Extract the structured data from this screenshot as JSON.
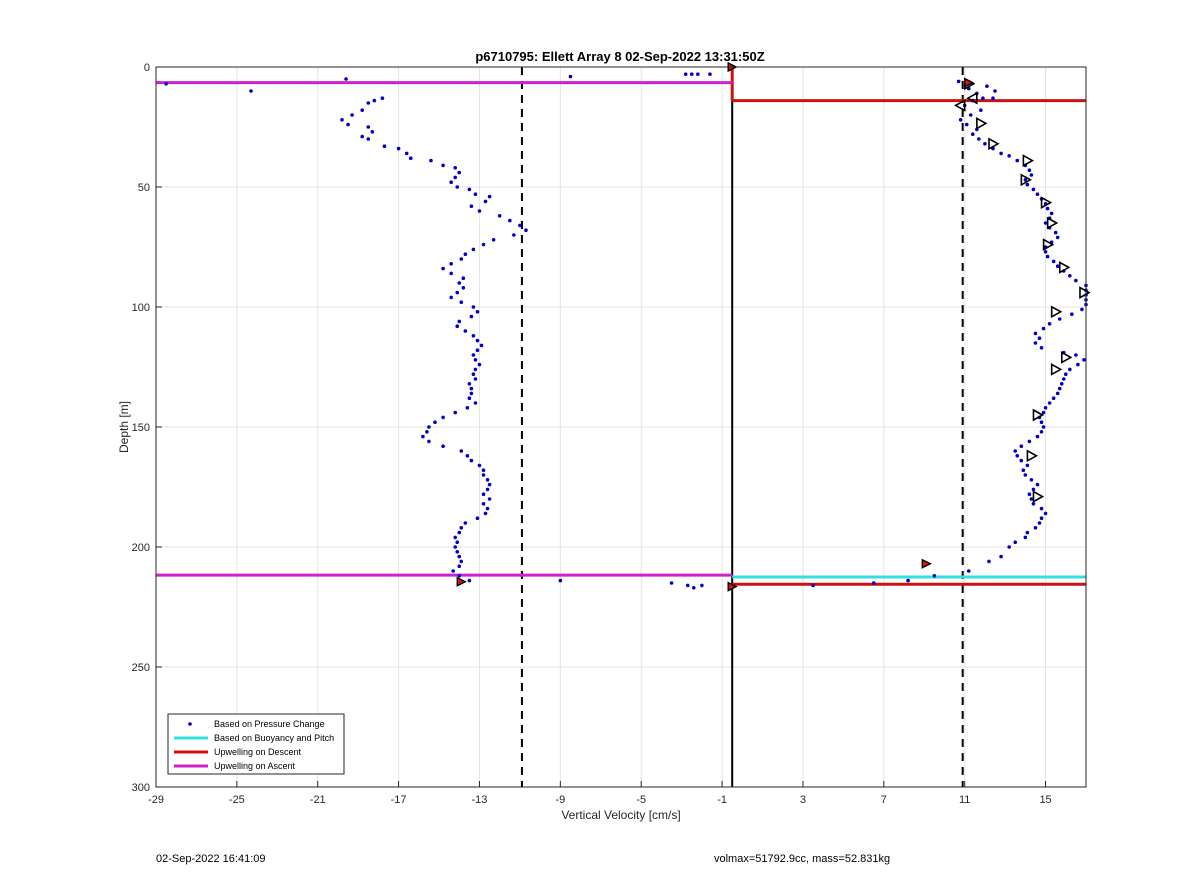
{
  "chart_data": {
    "type": "scatter",
    "title": "p6710795: Ellett Array 8 02-Sep-2022 13:31:50Z",
    "xlabel": "Vertical Velocity [cm/s]",
    "ylabel": "Depth [m]",
    "xlim": [
      -29,
      17
    ],
    "ylim": [
      0,
      300
    ],
    "y_reversed": true,
    "grid": true,
    "xticks": [
      -29,
      -25,
      -21,
      -17,
      -13,
      -9,
      -5,
      -1,
      3,
      7,
      11,
      15
    ],
    "yticks": [
      0,
      50,
      100,
      150,
      200,
      250,
      300
    ],
    "legend": {
      "location": "bottom-left",
      "entries": [
        {
          "name": "Based on Pressure Change",
          "color": "#0000cc",
          "style": "dot"
        },
        {
          "name": "Based on Buoyancy and Pitch",
          "color": "#33e0e0",
          "style": "line"
        },
        {
          "name": "Upwelling on Descent",
          "color": "#cc1111",
          "style": "line"
        },
        {
          "name": "Upwelling on Ascent",
          "color": "#cc22cc",
          "style": "line"
        }
      ]
    },
    "series": [
      {
        "name": "Based on Pressure Change",
        "color": "#0000cc",
        "points": [
          [
            -28.5,
            7
          ],
          [
            -24.3,
            10
          ],
          [
            -19.6,
            5
          ],
          [
            -8.5,
            4
          ],
          [
            -2.5,
            3
          ],
          [
            -2.2,
            3
          ],
          [
            -1.6,
            3
          ],
          [
            -2.8,
            3
          ],
          [
            -18.2,
            14
          ],
          [
            -17.8,
            13
          ],
          [
            -18.5,
            15
          ],
          [
            -18.8,
            18
          ],
          [
            -19.3,
            20
          ],
          [
            -19.8,
            22
          ],
          [
            -19.5,
            24
          ],
          [
            -18.5,
            25
          ],
          [
            -18.3,
            27
          ],
          [
            -18.8,
            29
          ],
          [
            -18.5,
            30
          ],
          [
            -17.7,
            33
          ],
          [
            -17.0,
            34
          ],
          [
            -16.6,
            36
          ],
          [
            -16.4,
            38
          ],
          [
            -15.4,
            39
          ],
          [
            -14.8,
            41
          ],
          [
            -14.2,
            42
          ],
          [
            -14.0,
            44
          ],
          [
            -14.2,
            46
          ],
          [
            -14.4,
            48
          ],
          [
            -14.1,
            50
          ],
          [
            -13.5,
            51
          ],
          [
            -13.2,
            53
          ],
          [
            -12.5,
            54
          ],
          [
            -12.7,
            56
          ],
          [
            -13.4,
            58
          ],
          [
            -13.0,
            60
          ],
          [
            -12.0,
            62
          ],
          [
            -11.5,
            64
          ],
          [
            -11.0,
            66
          ],
          [
            -10.7,
            68
          ],
          [
            -11.3,
            70
          ],
          [
            -12.3,
            72
          ],
          [
            -12.8,
            74
          ],
          [
            -13.3,
            76
          ],
          [
            -13.7,
            78
          ],
          [
            -13.9,
            80
          ],
          [
            -14.4,
            82
          ],
          [
            -14.8,
            84
          ],
          [
            -14.4,
            86
          ],
          [
            -13.8,
            88
          ],
          [
            -14.0,
            90
          ],
          [
            -13.8,
            92
          ],
          [
            -14.1,
            94
          ],
          [
            -14.4,
            96
          ],
          [
            -13.9,
            98
          ],
          [
            -13.3,
            100
          ],
          [
            -13.1,
            102
          ],
          [
            -13.4,
            104
          ],
          [
            -14.0,
            106
          ],
          [
            -14.1,
            108
          ],
          [
            -13.7,
            110
          ],
          [
            -13.3,
            112
          ],
          [
            -13.1,
            114
          ],
          [
            -12.9,
            116
          ],
          [
            -13.1,
            118
          ],
          [
            -13.3,
            120
          ],
          [
            -13.2,
            122
          ],
          [
            -13.0,
            124
          ],
          [
            -13.2,
            126
          ],
          [
            -13.3,
            128
          ],
          [
            -13.2,
            130
          ],
          [
            -13.5,
            132
          ],
          [
            -13.4,
            134
          ],
          [
            -13.4,
            136
          ],
          [
            -13.5,
            138
          ],
          [
            -13.2,
            140
          ],
          [
            -13.6,
            142
          ],
          [
            -14.2,
            144
          ],
          [
            -14.8,
            146
          ],
          [
            -15.2,
            148
          ],
          [
            -15.5,
            150
          ],
          [
            -15.6,
            152
          ],
          [
            -15.8,
            154
          ],
          [
            -15.5,
            156
          ],
          [
            -14.8,
            158
          ],
          [
            -13.9,
            160
          ],
          [
            -13.6,
            162
          ],
          [
            -13.4,
            164
          ],
          [
            -13.0,
            166
          ],
          [
            -12.8,
            168
          ],
          [
            -12.8,
            170
          ],
          [
            -12.6,
            172
          ],
          [
            -12.5,
            174
          ],
          [
            -12.6,
            176
          ],
          [
            -12.8,
            178
          ],
          [
            -12.5,
            180
          ],
          [
            -12.8,
            182
          ],
          [
            -12.6,
            184
          ],
          [
            -12.7,
            186
          ],
          [
            -13.1,
            188
          ],
          [
            -13.7,
            190
          ],
          [
            -13.9,
            192
          ],
          [
            -14.0,
            194
          ],
          [
            -14.2,
            196
          ],
          [
            -14.1,
            198
          ],
          [
            -14.2,
            200
          ],
          [
            -14.1,
            202
          ],
          [
            -14.0,
            204
          ],
          [
            -13.9,
            206
          ],
          [
            -14.0,
            208
          ],
          [
            -14.3,
            210
          ],
          [
            -14.0,
            212
          ],
          [
            -13.5,
            214
          ],
          [
            -9.0,
            214
          ],
          [
            -3.5,
            215
          ],
          [
            -2.7,
            216
          ],
          [
            -2.4,
            217
          ],
          [
            -2.0,
            216
          ],
          [
            3.5,
            216
          ],
          [
            6.5,
            215
          ],
          [
            8.2,
            214
          ],
          [
            9.5,
            212
          ],
          [
            11.2,
            210
          ],
          [
            12.2,
            206
          ],
          [
            12.8,
            204
          ],
          [
            13.2,
            200
          ],
          [
            13.5,
            198
          ],
          [
            14.0,
            196
          ],
          [
            14.1,
            194
          ],
          [
            14.5,
            192
          ],
          [
            14.7,
            190
          ],
          [
            14.8,
            188
          ],
          [
            15.0,
            186
          ],
          [
            14.8,
            184
          ],
          [
            14.4,
            182
          ],
          [
            14.3,
            180
          ],
          [
            14.2,
            178
          ],
          [
            14.4,
            176
          ],
          [
            14.6,
            174
          ],
          [
            14.3,
            172
          ],
          [
            14.0,
            170
          ],
          [
            13.9,
            168
          ],
          [
            14.1,
            166
          ],
          [
            13.8,
            164
          ],
          [
            13.6,
            162
          ],
          [
            13.5,
            160
          ],
          [
            13.8,
            158
          ],
          [
            14.2,
            156
          ],
          [
            14.6,
            154
          ],
          [
            14.8,
            152
          ],
          [
            14.9,
            150
          ],
          [
            14.8,
            148
          ],
          [
            14.7,
            146
          ],
          [
            14.9,
            144
          ],
          [
            15.0,
            142
          ],
          [
            15.2,
            140
          ],
          [
            15.4,
            138
          ],
          [
            15.6,
            136
          ],
          [
            15.7,
            134
          ],
          [
            15.8,
            132
          ],
          [
            15.9,
            130
          ],
          [
            16.0,
            128
          ],
          [
            16.2,
            126
          ],
          [
            16.6,
            124
          ],
          [
            16.9,
            122
          ],
          [
            16.5,
            120
          ],
          [
            15.9,
            119
          ],
          [
            14.8,
            117
          ],
          [
            14.5,
            115
          ],
          [
            14.7,
            113
          ],
          [
            14.5,
            111
          ],
          [
            14.9,
            109
          ],
          [
            15.2,
            107
          ],
          [
            15.7,
            105
          ],
          [
            16.3,
            103
          ],
          [
            16.8,
            101
          ],
          [
            17.3,
            99
          ],
          [
            17.6,
            97
          ],
          [
            17.9,
            95
          ],
          [
            17.5,
            93
          ],
          [
            17.0,
            91
          ],
          [
            16.5,
            89
          ],
          [
            16.2,
            87
          ],
          [
            15.9,
            85
          ],
          [
            15.6,
            83
          ],
          [
            15.4,
            81
          ],
          [
            15.1,
            79
          ],
          [
            15.0,
            77
          ],
          [
            15.0,
            75
          ],
          [
            15.3,
            73
          ],
          [
            15.6,
            71
          ],
          [
            15.5,
            69
          ],
          [
            15.2,
            67
          ],
          [
            15.0,
            65
          ],
          [
            15.2,
            63
          ],
          [
            15.3,
            61
          ],
          [
            15.1,
            59
          ],
          [
            15.0,
            57
          ],
          [
            14.8,
            55
          ],
          [
            14.6,
            53
          ],
          [
            14.4,
            51
          ],
          [
            14.1,
            49
          ],
          [
            14.0,
            47
          ],
          [
            14.3,
            45
          ],
          [
            14.2,
            43
          ],
          [
            14.0,
            41
          ],
          [
            13.6,
            39
          ],
          [
            13.2,
            37
          ],
          [
            12.8,
            36
          ],
          [
            12.4,
            34
          ],
          [
            12.0,
            32
          ],
          [
            11.7,
            30
          ],
          [
            11.4,
            28
          ],
          [
            11.6,
            26
          ],
          [
            11.1,
            24
          ],
          [
            10.8,
            22
          ],
          [
            11.3,
            20
          ],
          [
            11.8,
            18
          ],
          [
            11.0,
            16
          ],
          [
            11.4,
            14
          ],
          [
            11.9,
            13
          ],
          [
            12.4,
            13
          ],
          [
            11.6,
            11
          ],
          [
            11.2,
            9
          ],
          [
            12.1,
            8
          ],
          [
            10.7,
            6
          ],
          [
            12.5,
            10
          ]
        ]
      },
      {
        "name": "Upwelling on Descent",
        "color": "#cc1111",
        "segments": [
          {
            "x": [
              -0.5,
              17.0
            ],
            "y": [
              14,
              14
            ]
          },
          {
            "x": [
              -0.5,
              17.0
            ],
            "y": [
              215.5,
              215.5
            ]
          },
          {
            "x": [
              -0.5,
              -0.5
            ],
            "y": [
              0,
              14
            ]
          }
        ]
      },
      {
        "name": "Upwelling on Ascent",
        "color": "#cc22cc",
        "segments": [
          {
            "x": [
              -29.0,
              -0.5
            ],
            "y": [
              6.5,
              6.5
            ]
          },
          {
            "x": [
              -29.0,
              -0.5
            ],
            "y": [
              211.7,
              211.7
            ]
          }
        ]
      },
      {
        "name": "Based on Buoyancy and Pitch",
        "color": "#33e0e0",
        "segments": [
          {
            "x": [
              -0.5,
              17.0
            ],
            "y": [
              212.5,
              212.5
            ]
          }
        ]
      }
    ],
    "markers": [
      {
        "shape": "triangle-right",
        "points": [
          [
            11.2,
            7
          ],
          [
            11.8,
            23.5
          ],
          [
            12.4,
            32
          ],
          [
            14.1,
            39
          ],
          [
            14.0,
            47
          ],
          [
            15.0,
            56.5
          ],
          [
            15.3,
            65
          ],
          [
            15.1,
            74
          ],
          [
            15.9,
            83.5
          ],
          [
            16.9,
            94
          ],
          [
            15.5,
            102
          ],
          [
            16.0,
            121
          ],
          [
            15.5,
            126
          ],
          [
            14.6,
            145
          ],
          [
            14.3,
            162
          ],
          [
            14.6,
            179
          ]
        ]
      },
      {
        "shape": "triangle-left",
        "points": [
          [
            11.4,
            13
          ],
          [
            10.8,
            16
          ]
        ]
      },
      {
        "shape": "red-filled",
        "points": [
          [
            -0.5,
            0
          ],
          [
            11.2,
            6.5
          ],
          [
            9.1,
            207
          ],
          [
            -13.9,
            214.5
          ],
          [
            -0.5,
            216.5
          ]
        ]
      }
    ],
    "reference_lines": [
      {
        "style": "dashed",
        "orientation": "vertical",
        "x": -10.9
      },
      {
        "style": "dashed",
        "orientation": "vertical",
        "x": 10.9
      },
      {
        "style": "solid",
        "orientation": "vertical",
        "x": -0.5,
        "y": [
          14,
          300
        ]
      }
    ]
  },
  "footer": {
    "left": "02-Sep-2022 16:41:09",
    "right": "volmax=51792.9cc, mass=52.831kg"
  }
}
